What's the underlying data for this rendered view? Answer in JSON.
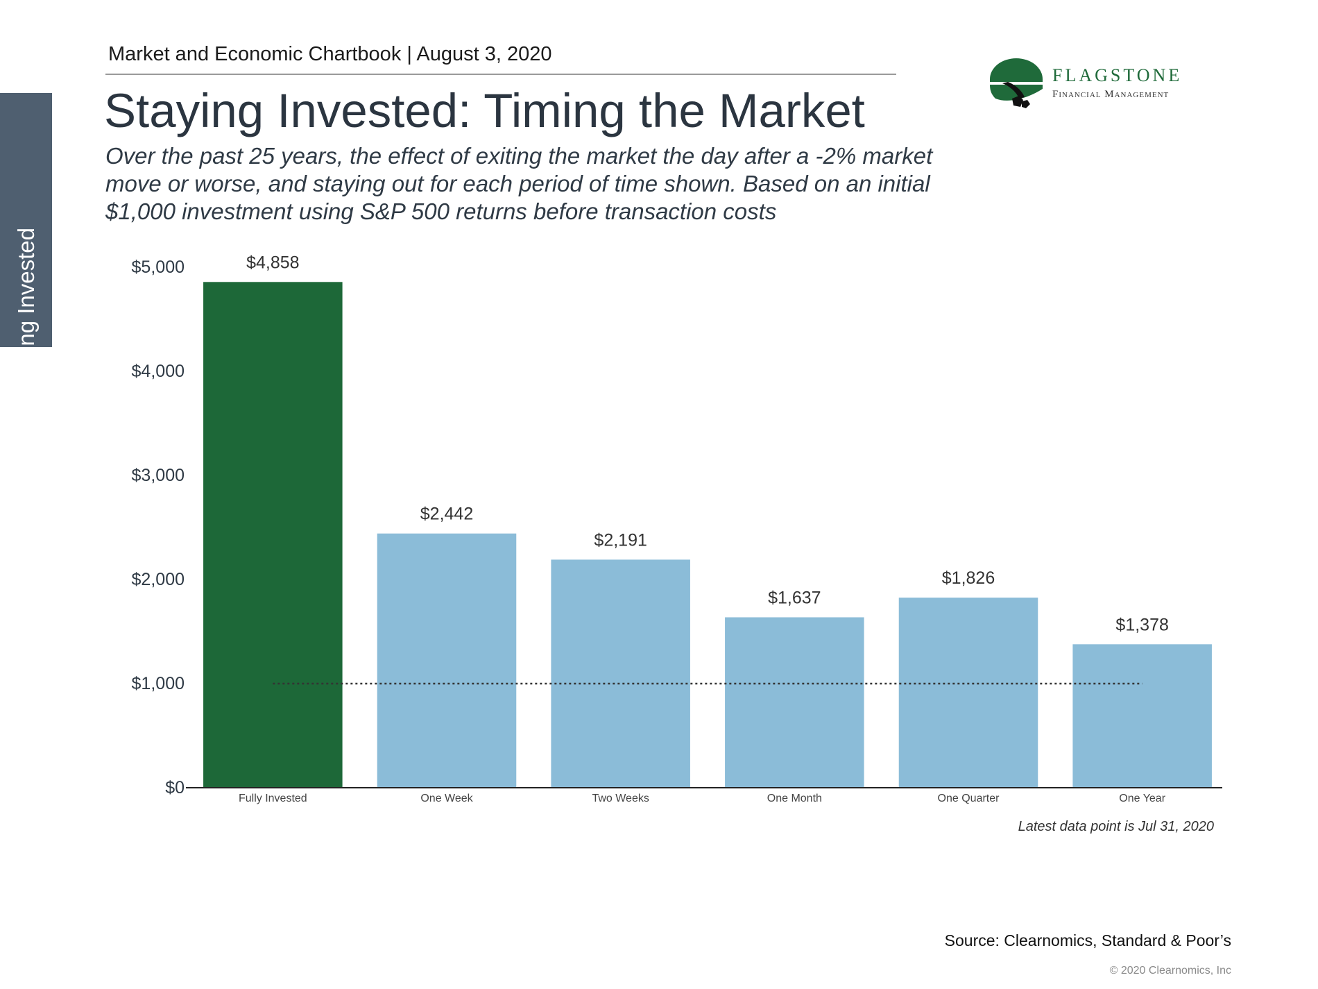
{
  "header": {
    "chartbook_title": "Market and Economic Chartbook | August 3, 2020",
    "page_title": "Staying Invested: Timing the Market",
    "subtitle": "Over the past 25 years, the effect of exiting the market the day after a -2% market move or worse, and staying out for each period of time shown. Based on an initial $1,000 investment using S&P 500 returns before transaction costs"
  },
  "side_tab": {
    "label": "Staying Invested"
  },
  "logo": {
    "name": "FLAGSTONE",
    "subtitle": "Financial Management",
    "icon": "flagstone-logo-icon"
  },
  "colors": {
    "highlight_bar": "#1d6838",
    "bar": "#8bbcd8",
    "reference_line": "#333333",
    "axis": "#2f3a45",
    "side_tab": "#4f5f70"
  },
  "chart_data": {
    "type": "bar",
    "title": "",
    "xlabel": "",
    "ylabel": "",
    "categories": [
      "Fully Invested",
      "One Week",
      "Two Weeks",
      "One Month",
      "One Quarter",
      "One Year"
    ],
    "values": [
      4858,
      2442,
      2191,
      1637,
      1826,
      1378
    ],
    "data_labels": [
      "$4,858",
      "$2,442",
      "$2,191",
      "$1,637",
      "$1,826",
      "$1,378"
    ],
    "highlight_index": 0,
    "ylim": [
      0,
      5000
    ],
    "yticks": [
      0,
      1000,
      2000,
      3000,
      4000,
      5000
    ],
    "ytick_labels": [
      "$0",
      "$1,000",
      "$2,000",
      "$3,000",
      "$4,000",
      "$5,000"
    ],
    "reference_line": {
      "value": 1000,
      "style": "dotted"
    },
    "grid": false
  },
  "footer": {
    "latest_data": "Latest data point is Jul 31, 2020",
    "source": "Source: Clearnomics, Standard & Poor’s",
    "copyright": "© 2020 Clearnomics, Inc"
  }
}
